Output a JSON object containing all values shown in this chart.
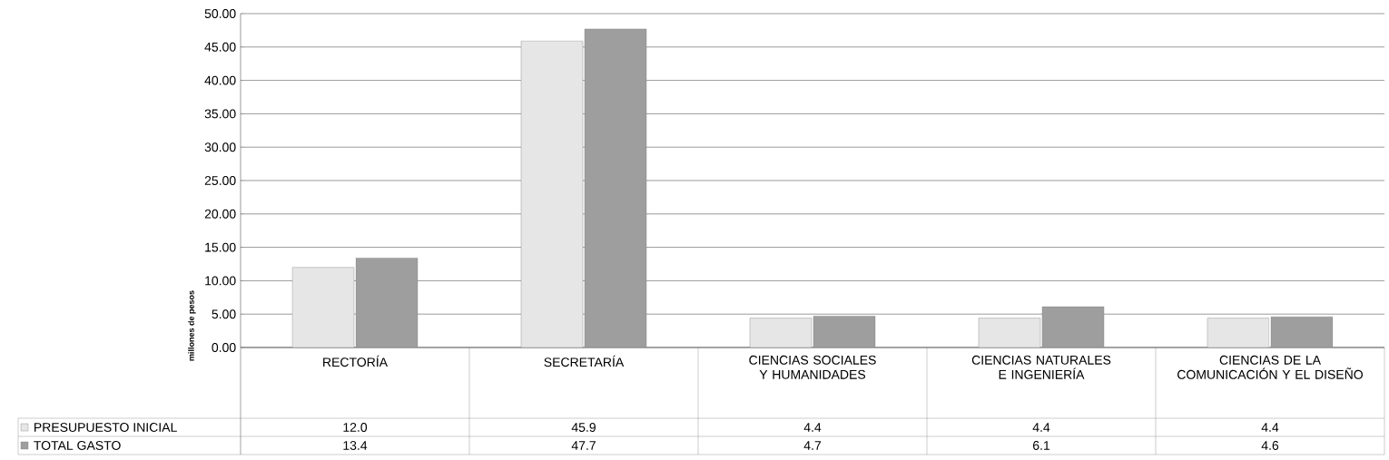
{
  "chart_data": {
    "type": "bar",
    "ylabel": "millones de pesos",
    "categories": [
      "RECTORÍA",
      "SECRETARÍA",
      "CIENCIAS SOCIALES Y HUMANIDADES",
      "CIENCIAS NATURALES E INGENIERÍA",
      "CIENCIAS DE LA COMUNICACIÓN Y EL DISEÑO"
    ],
    "series": [
      {
        "name": "PRESUPUESTO INICIAL",
        "color": "#e6e6e6",
        "values": [
          12.0,
          45.9,
          4.4,
          4.4,
          4.4
        ],
        "value_labels": [
          "12.0",
          "45.9",
          "4.4",
          "4.4",
          "4.4"
        ]
      },
      {
        "name": "TOTAL GASTO",
        "color": "#9e9e9e",
        "values": [
          13.4,
          47.7,
          4.7,
          6.1,
          4.6
        ],
        "value_labels": [
          "13.4",
          "47.7",
          "4.7",
          "6.1",
          "4.6"
        ]
      }
    ],
    "ylim": [
      0,
      50
    ],
    "yticks": [
      {
        "value": 0,
        "label": "0.00"
      },
      {
        "value": 5,
        "label": "5.00"
      },
      {
        "value": 10,
        "label": "10.00"
      },
      {
        "value": 15,
        "label": "15.00"
      },
      {
        "value": 20,
        "label": "20.00"
      },
      {
        "value": 25,
        "label": "25.00"
      },
      {
        "value": 30,
        "label": "30.00"
      },
      {
        "value": 35,
        "label": "35.00"
      },
      {
        "value": 40,
        "label": "40.00"
      },
      {
        "value": 45,
        "label": "45.00"
      },
      {
        "value": 50,
        "label": "50.00"
      }
    ],
    "grid": "y",
    "legend": "bottom"
  }
}
